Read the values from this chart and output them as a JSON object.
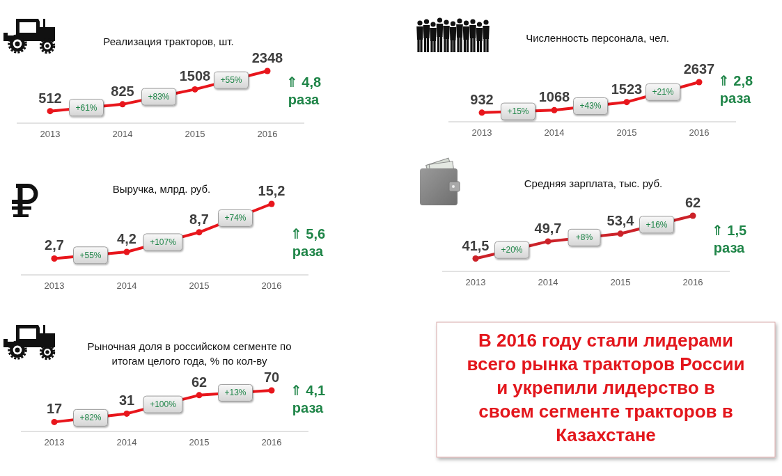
{
  "chart_data": [
    {
      "type": "line",
      "title": "Реализация тракторов, шт.",
      "categories": [
        "2013",
        "2014",
        "2015",
        "2016"
      ],
      "values": [
        512,
        825,
        1508,
        2348
      ],
      "color": "#e8161c",
      "marker": "circle",
      "data_labels": true,
      "annotations": [
        "+61%",
        "+83%",
        "+55%",
        "⇑ 4,8 раза"
      ]
    },
    {
      "type": "line",
      "title": "Численность персонала, чел.",
      "categories": [
        "2013",
        "2014",
        "2015",
        "2016"
      ],
      "values": [
        932,
        1068,
        1523,
        2637
      ],
      "color": "#e8161c",
      "marker": "circle",
      "data_labels": true,
      "annotations": [
        "+15%",
        "+43%",
        "+21%",
        "⇑ 2,8 раза"
      ]
    },
    {
      "type": "line",
      "title": "Выручка, млрд. руб.",
      "categories": [
        "2013",
        "2014",
        "2015",
        "2016"
      ],
      "values": [
        2.7,
        4.2,
        8.7,
        15.2
      ],
      "value_labels": [
        "2,7",
        "4,2",
        "8,7",
        "15,2"
      ],
      "color": "#e8161c",
      "marker": "circle",
      "annotations": [
        "+55%",
        "+107%",
        "+74%",
        "⇑ 5,6 раза"
      ]
    },
    {
      "type": "line",
      "title": "Средняя зарплата, тыс. руб.",
      "categories": [
        "2013",
        "2014",
        "2015",
        "2016"
      ],
      "values": [
        41.5,
        49.7,
        53.4,
        62
      ],
      "value_labels": [
        "41,5",
        "49,7",
        "53,4",
        "62"
      ],
      "color": "#cc2229",
      "marker": "circle",
      "annotations": [
        "+20%",
        "+8%",
        "+16%",
        "⇑ 1,5 раза"
      ]
    },
    {
      "type": "line",
      "title": "Рыночная доля в российском сегменте по\nитогам целого года, % по кол-ву",
      "categories": [
        "2013",
        "2014",
        "2015",
        "2016"
      ],
      "values": [
        17,
        31,
        62,
        70
      ],
      "color": "#e8161c",
      "marker": "circle",
      "data_labels": true,
      "annotations": [
        "+82%",
        "+100%",
        "+13%",
        "⇑ 4,1 раза"
      ]
    },
    {
      "type": "other",
      "title": "В 2016 году стали лидерами\nвсего рынка тракторов России\nи укрепили лидерство в\nсвоем сегменте тракторов в\nКазахстане"
    }
  ]
}
